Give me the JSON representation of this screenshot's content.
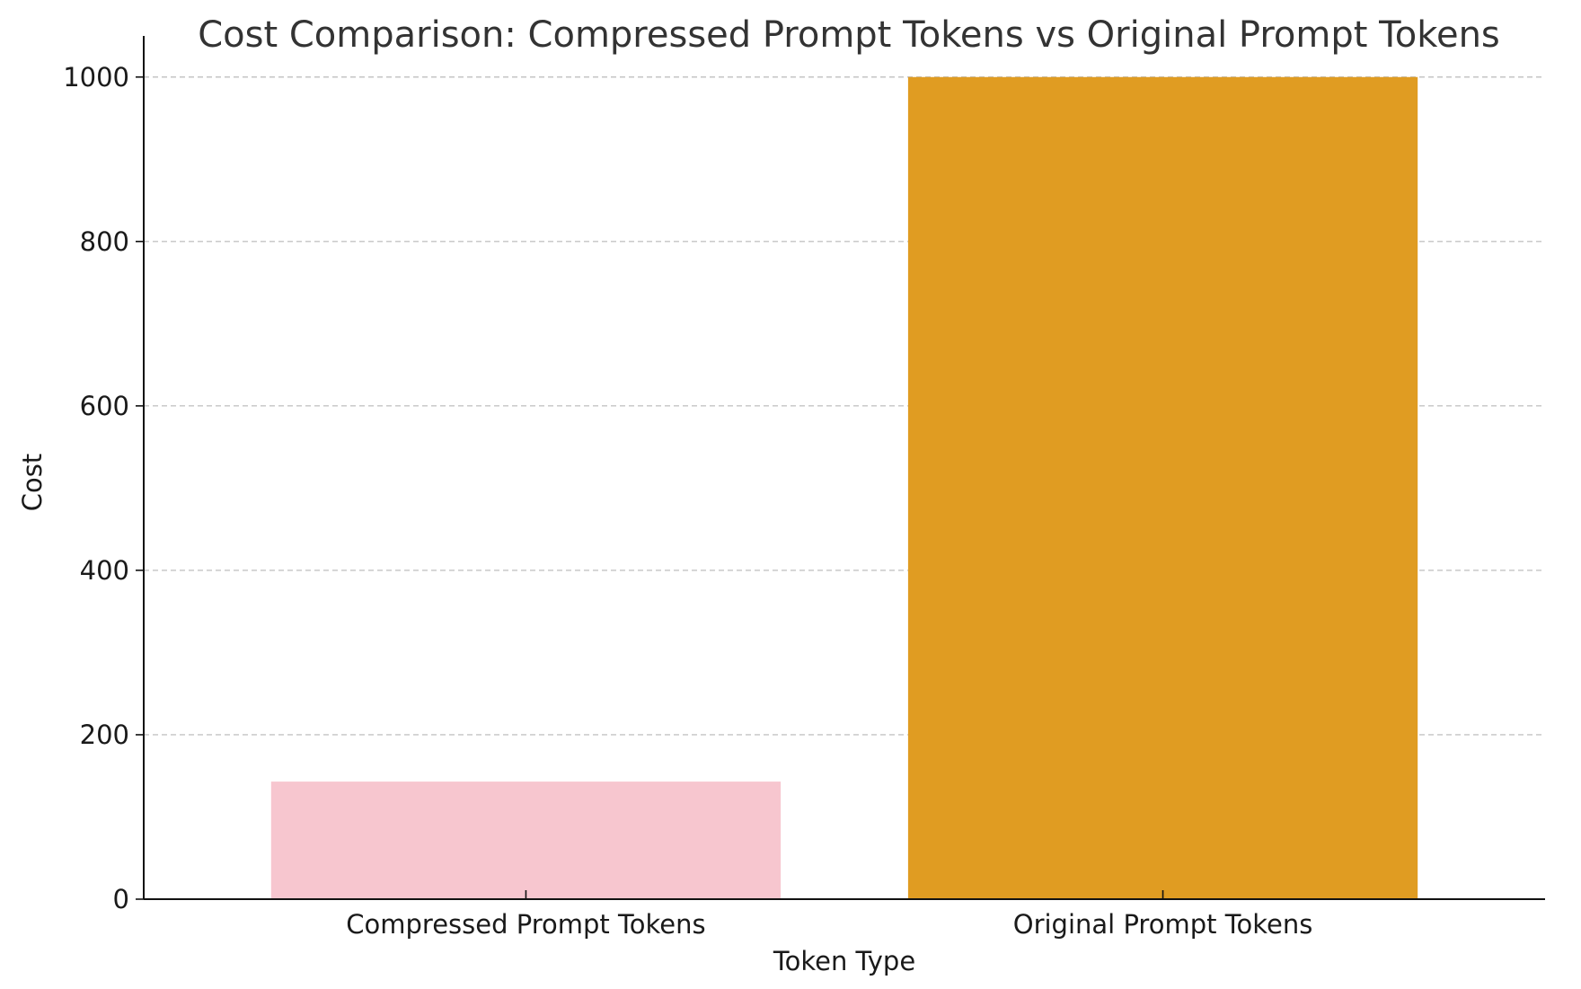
{
  "chart_data": {
    "type": "bar",
    "title": "Cost Comparison: Compressed Prompt Tokens vs Original Prompt Tokens",
    "xlabel": "Token Type",
    "ylabel": "Cost",
    "categories": [
      "Compressed Prompt Tokens",
      "Original Prompt Tokens"
    ],
    "values": [
      143,
      1000
    ],
    "colors": [
      "#f7c6cf",
      "#e09c22"
    ],
    "ylim": [
      0,
      1050
    ],
    "yticks": [
      0,
      200,
      400,
      600,
      800,
      1000
    ],
    "grid": "y-dashed",
    "legend": "none"
  }
}
